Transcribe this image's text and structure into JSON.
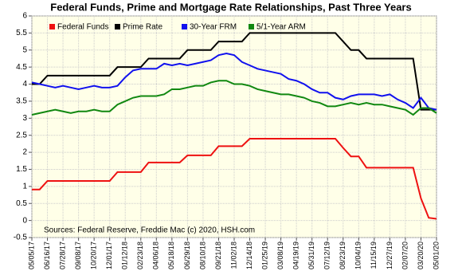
{
  "chart_data": {
    "type": "line",
    "title": "Federal Funds, Prime and Mortgage Rate Relationships, Past Three Years",
    "annotation": "Sources: Federal Reserve, Freddie Mac (c) 2020, HSH.com",
    "categories": [
      "05/05/17",
      null,
      "06/16/17",
      null,
      "07/28/17",
      null,
      "09/08/17",
      null,
      "10/20/17",
      null,
      "12/01/17",
      null,
      "01/12/18",
      null,
      "02/23/18",
      null,
      "04/06/18",
      null,
      "05/18/18",
      null,
      "06/29/18",
      null,
      "08/10/18",
      null,
      "09/21/18",
      null,
      "11/02/18",
      null,
      "12/14/18",
      null,
      "01/25/19",
      null,
      "03/08/19",
      null,
      "04/19/19",
      null,
      "05/31/19",
      null,
      "07/12/19",
      null,
      "08/23/19",
      null,
      "10/04/19",
      null,
      "11/15/19",
      null,
      "12/27/19",
      null,
      "02/07/20",
      null,
      "03/20/20",
      null,
      "05/01/20"
    ],
    "series": [
      {
        "name": "Federal Funds",
        "color": "#ee1111",
        "values": [
          0.91,
          0.91,
          1.16,
          1.16,
          1.16,
          1.16,
          1.16,
          1.16,
          1.16,
          1.16,
          1.16,
          1.42,
          1.42,
          1.42,
          1.42,
          1.7,
          1.7,
          1.7,
          1.7,
          1.7,
          1.91,
          1.91,
          1.91,
          1.91,
          2.18,
          2.18,
          2.18,
          2.18,
          2.4,
          2.4,
          2.4,
          2.4,
          2.4,
          2.4,
          2.4,
          2.4,
          2.4,
          2.4,
          2.4,
          2.4,
          2.13,
          1.88,
          1.88,
          1.55,
          1.55,
          1.55,
          1.55,
          1.55,
          1.55,
          1.55,
          0.65,
          0.08,
          0.05
        ]
      },
      {
        "name": "Prime Rate",
        "color": "#000000",
        "values": [
          4.0,
          4.0,
          4.25,
          4.25,
          4.25,
          4.25,
          4.25,
          4.25,
          4.25,
          4.25,
          4.25,
          4.5,
          4.5,
          4.5,
          4.5,
          4.75,
          4.75,
          4.75,
          4.75,
          4.75,
          5.0,
          5.0,
          5.0,
          5.0,
          5.25,
          5.25,
          5.25,
          5.25,
          5.5,
          5.5,
          5.5,
          5.5,
          5.5,
          5.5,
          5.5,
          5.5,
          5.5,
          5.5,
          5.5,
          5.5,
          5.25,
          5.0,
          5.0,
          4.75,
          4.75,
          4.75,
          4.75,
          4.75,
          4.75,
          4.75,
          3.25,
          3.25,
          3.25
        ]
      },
      {
        "name": "30-Year FRM",
        "color": "#1111ee",
        "values": [
          4.05,
          4.0,
          3.95,
          3.9,
          3.95,
          3.9,
          3.85,
          3.9,
          3.95,
          3.9,
          3.9,
          3.95,
          4.2,
          4.4,
          4.45,
          4.45,
          4.45,
          4.6,
          4.55,
          4.6,
          4.55,
          4.6,
          4.65,
          4.7,
          4.85,
          4.9,
          4.85,
          4.65,
          4.55,
          4.45,
          4.4,
          4.35,
          4.3,
          4.15,
          4.1,
          4.0,
          3.85,
          3.75,
          3.75,
          3.6,
          3.55,
          3.65,
          3.7,
          3.7,
          3.7,
          3.65,
          3.7,
          3.55,
          3.45,
          3.3,
          3.6,
          3.3,
          3.25
        ]
      },
      {
        "name": "5/1-Year ARM",
        "color": "#118811",
        "values": [
          3.1,
          3.15,
          3.2,
          3.25,
          3.2,
          3.15,
          3.2,
          3.2,
          3.25,
          3.2,
          3.2,
          3.4,
          3.5,
          3.6,
          3.65,
          3.65,
          3.65,
          3.7,
          3.85,
          3.85,
          3.9,
          3.95,
          3.95,
          4.05,
          4.1,
          4.1,
          4.0,
          4.0,
          3.95,
          3.85,
          3.8,
          3.75,
          3.7,
          3.7,
          3.65,
          3.6,
          3.5,
          3.45,
          3.35,
          3.35,
          3.4,
          3.45,
          3.4,
          3.45,
          3.4,
          3.4,
          3.35,
          3.3,
          3.25,
          3.1,
          3.3,
          3.3,
          3.15
        ]
      }
    ],
    "ylim": [
      -0.5,
      6
    ],
    "yticks": [
      -0.5,
      0,
      0.5,
      1,
      1.5,
      2,
      2.5,
      3,
      3.5,
      4,
      4.5,
      5,
      5.5,
      6
    ],
    "grid": true,
    "legend": "top-left",
    "plot_background": "#ffffe8"
  }
}
